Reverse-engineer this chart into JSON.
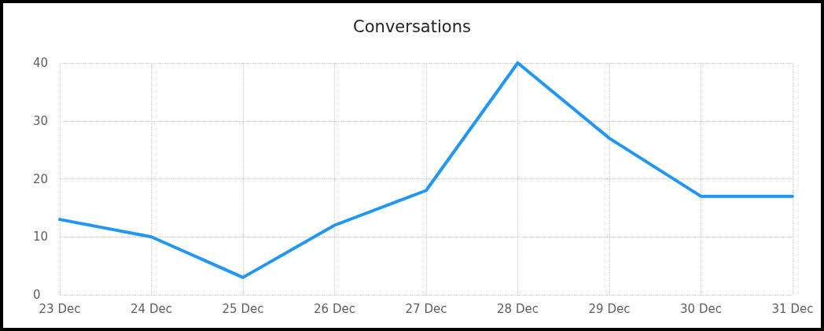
{
  "chart_data": {
    "type": "line",
    "title": "Conversations",
    "categories": [
      "23 Dec",
      "24 Dec",
      "25 Dec",
      "26 Dec",
      "27 Dec",
      "28 Dec",
      "29 Dec",
      "30 Dec",
      "31 Dec"
    ],
    "values": [
      13,
      10,
      3,
      12,
      18,
      40,
      27,
      17,
      17
    ],
    "color": "#2196f3",
    "ylim": [
      0,
      40
    ],
    "yticks": [
      0,
      10,
      20,
      30,
      40
    ],
    "grid": true,
    "marker": "none",
    "line_style": "solid"
  }
}
